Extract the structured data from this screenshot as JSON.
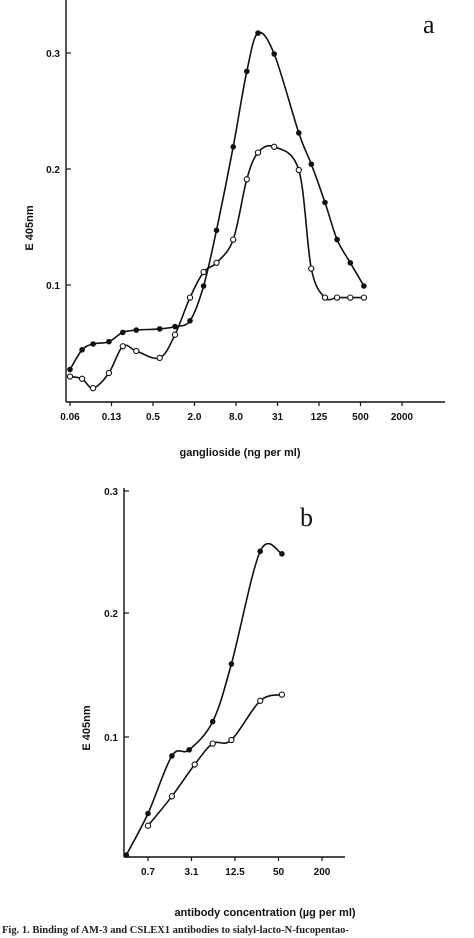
{
  "chart_data": [
    {
      "type": "line",
      "panel_label": "a",
      "xlabel": "ganglioside (ng per ml)",
      "ylabel": "E 405nm",
      "x_scale": "log",
      "x_ticks": [
        "0.06",
        "0.13",
        "0.5",
        "2.0",
        "8.0",
        "31",
        "125",
        "500",
        "2000"
      ],
      "y_ticks": [
        "0.1",
        "0.2",
        "0.3"
      ],
      "ylim": [
        0.0,
        0.35
      ],
      "grid": false,
      "series": [
        {
          "marker": "filled",
          "x": [
            0.06,
            0.09,
            0.13,
            0.22,
            0.35,
            0.55,
            1.2,
            2.0,
            3.3,
            5.2,
            8.0,
            14,
            22,
            32,
            55,
            125,
            190,
            300,
            450,
            700,
            1100
          ],
          "y": [
            0.028,
            0.045,
            0.05,
            0.052,
            0.06,
            0.062,
            0.063,
            0.065,
            0.07,
            0.1,
            0.148,
            0.22,
            0.285,
            0.318,
            0.3,
            0.232,
            0.205,
            0.172,
            0.14,
            0.12,
            0.1
          ]
        },
        {
          "marker": "open",
          "x": [
            0.06,
            0.09,
            0.13,
            0.22,
            0.35,
            0.55,
            1.2,
            2.0,
            3.3,
            5.2,
            8.0,
            14,
            22,
            32,
            55,
            125,
            190,
            300,
            450,
            700,
            1100
          ],
          "y": [
            0.022,
            0.02,
            0.012,
            0.025,
            0.048,
            0.044,
            0.038,
            0.058,
            0.09,
            0.112,
            0.12,
            0.14,
            0.192,
            0.215,
            0.22,
            0.2,
            0.115,
            0.09,
            0.09,
            0.09,
            0.09
          ]
        }
      ]
    },
    {
      "type": "line",
      "panel_label": "b",
      "xlabel": "antibody concentration (µg per ml)",
      "ylabel": "E 405nm",
      "x_scale": "log",
      "x_ticks": [
        "0.7",
        "3.1",
        "12.5",
        "50",
        "200"
      ],
      "y_ticks": [
        "0.1",
        "0.2",
        "0.3"
      ],
      "ylim": [
        0.0,
        0.3
      ],
      "grid": false,
      "series": [
        {
          "marker": "filled",
          "x": [
            0.35,
            0.7,
            1.5,
            2.6,
            5.5,
            10.0,
            25.0,
            50.0
          ],
          "y": [
            0.004,
            0.038,
            0.085,
            0.09,
            0.113,
            0.16,
            0.252,
            0.25
          ]
        },
        {
          "marker": "open",
          "x": [
            0.7,
            1.5,
            3.1,
            5.5,
            10.0,
            25.0,
            50.0
          ],
          "y": [
            0.028,
            0.052,
            0.078,
            0.095,
            0.098,
            0.13,
            0.135
          ]
        }
      ]
    }
  ],
  "caption": "Fig. 1. Binding of AM-3 and CSLEX1 antibodies to sialyl-lacto-N-fucopentao-"
}
